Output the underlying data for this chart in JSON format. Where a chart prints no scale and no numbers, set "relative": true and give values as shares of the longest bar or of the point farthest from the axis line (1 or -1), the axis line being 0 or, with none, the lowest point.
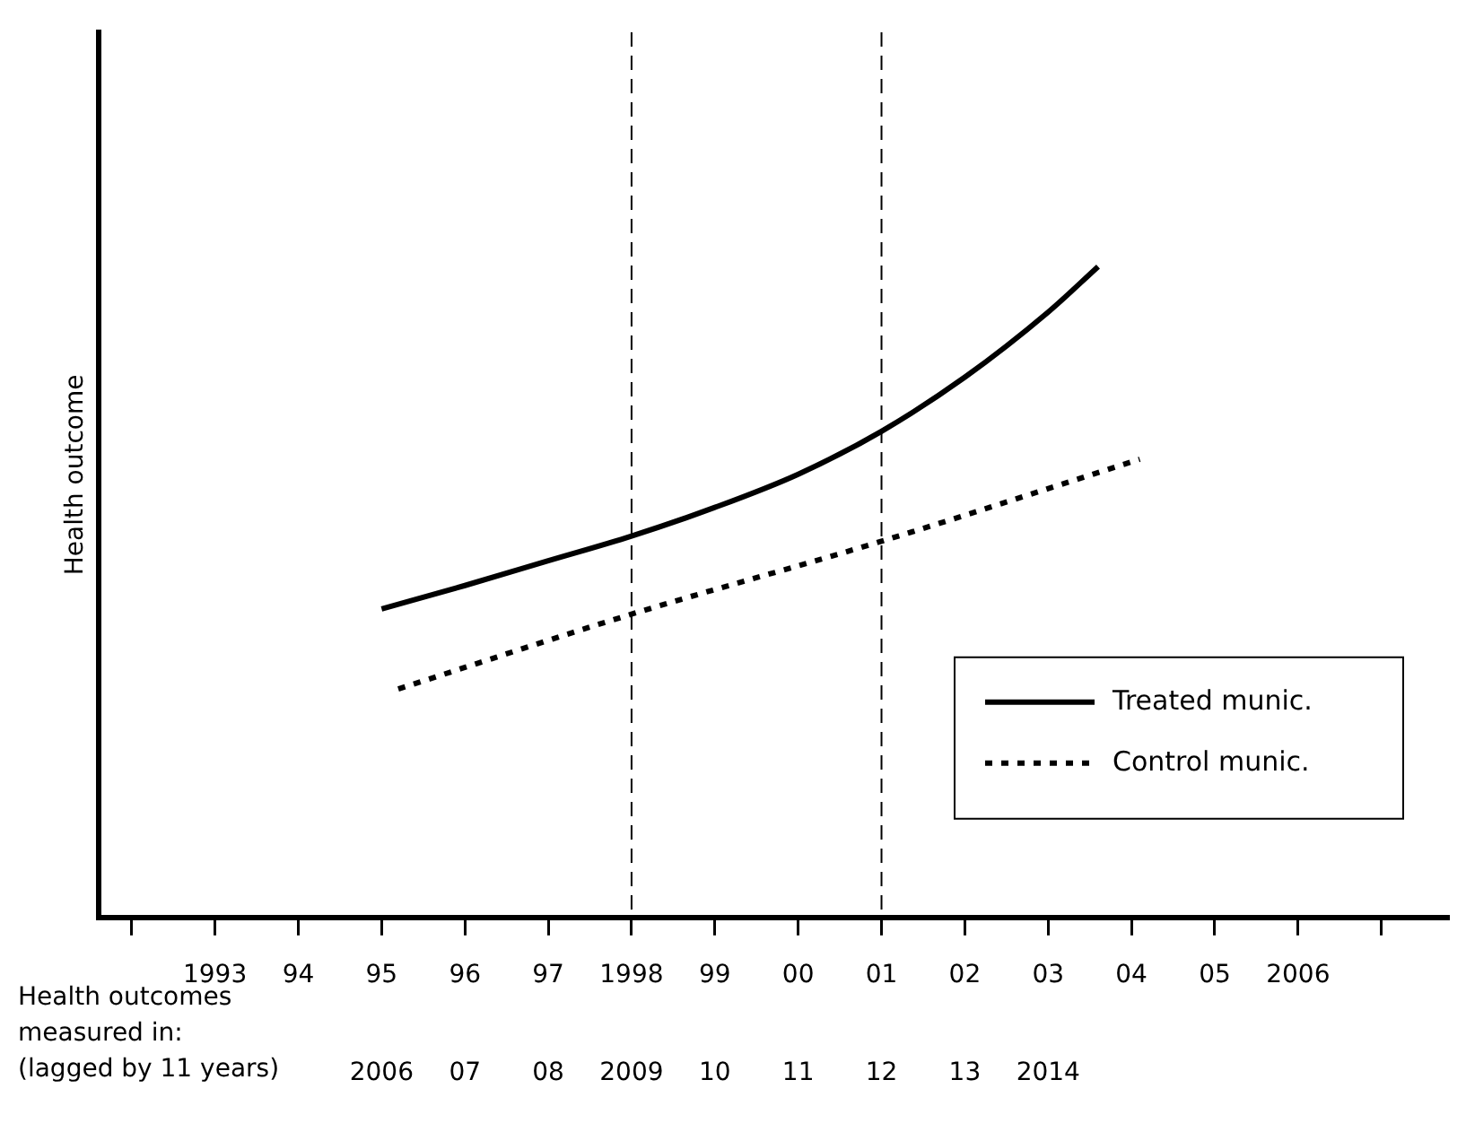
{
  "chart_data": {
    "type": "line",
    "relative": true,
    "ylabel": "Health outcome",
    "x2label": "Health outcomes measured in: (lagged by 11 years)",
    "xlim": [
      1991.6,
      2007.8
    ],
    "xticks": [
      {
        "value": 1992,
        "label": null
      },
      1993,
      {
        "value": 1994,
        "label": "94"
      },
      {
        "value": 1995,
        "label": "95"
      },
      {
        "value": 1996,
        "label": "96"
      },
      {
        "value": 1997,
        "label": "97"
      },
      1998,
      {
        "value": 1999,
        "label": "99"
      },
      {
        "value": 2000,
        "label": "00"
      },
      {
        "value": 2001,
        "label": "01"
      },
      {
        "value": 2002,
        "label": "02"
      },
      {
        "value": 2003,
        "label": "03"
      },
      {
        "value": 2004,
        "label": "04"
      },
      {
        "value": 2005,
        "label": "05"
      },
      2006,
      {
        "value": 2007,
        "label": null
      }
    ],
    "x2lim": [
      2002.6,
      2018.8
    ],
    "x2ticks": [
      2006,
      {
        "value": 2007,
        "label": "07"
      },
      {
        "value": 2008,
        "label": "08"
      },
      2009,
      {
        "value": 2010,
        "label": "10"
      },
      {
        "value": 2011,
        "label": "11"
      },
      {
        "value": 2012,
        "label": "12"
      },
      {
        "value": 2013,
        "label": "13"
      },
      2014
    ],
    "series": [
      {
        "name": "Treated munic.",
        "color": "#000000",
        "line_style": "solid",
        "x": [
          1995,
          1996,
          1997,
          1998,
          1999,
          2000,
          2001,
          2002,
          2003,
          2003.6
        ],
        "values": [
          0.474,
          0.51,
          0.548,
          0.586,
          0.63,
          0.681,
          0.747,
          0.83,
          0.93,
          1
        ]
      },
      {
        "name": "Control munic.",
        "color": "#000000",
        "line_style": "dotted",
        "x": [
          1995.2,
          1998,
          2001,
          2004.1
        ],
        "values": [
          0.351,
          0.466,
          0.578,
          0.704
        ]
      }
    ],
    "ref_lines": [
      {
        "axis": "x",
        "value": 1998,
        "label": null,
        "line_style": "dashed"
      },
      {
        "axis": "x",
        "value": 2001,
        "label": null,
        "line_style": "dashed"
      }
    ],
    "legend": "right",
    "grid": false,
    "marker": "none"
  }
}
